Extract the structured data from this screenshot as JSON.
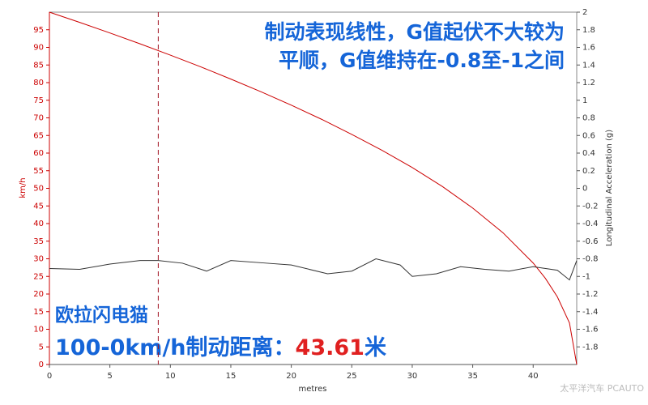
{
  "chart_data": {
    "type": "line",
    "annotations": [
      "制动表现线性，G值起伏不大较为",
      "平顺，G值维持在-0.8至-1之间",
      "欧拉闪电猫",
      "100-0km/h制动距离：",
      "43.61",
      "米"
    ],
    "watermark": "太平洋汽车 PCAUTO",
    "xlabel": "metres",
    "ylabel": "km/h",
    "y2label": "Longitudinal Acceleration (g)",
    "xlim": [
      0,
      43.6
    ],
    "xticks": [
      0,
      5,
      10,
      15,
      20,
      25,
      30,
      35,
      40
    ],
    "ylim": [
      0,
      100
    ],
    "yticks": [
      0,
      5,
      10,
      15,
      20,
      25,
      30,
      35,
      40,
      45,
      50,
      55,
      60,
      65,
      70,
      75,
      80,
      85,
      90,
      95
    ],
    "y2lim": [
      -2,
      2
    ],
    "y2ticks": [
      -1.8,
      -1.6,
      -1.4,
      -1.2,
      -1,
      -0.8,
      -0.6,
      -0.4,
      -0.2,
      0,
      0.2,
      0.4,
      0.6,
      0.8,
      1,
      1.2,
      1.4,
      1.6,
      1.8,
      2
    ],
    "vline_x": 9,
    "series": [
      {
        "name": "km/h",
        "color": "#cc0000",
        "x": [
          0,
          2.5,
          5,
          7.5,
          10,
          12.5,
          15,
          17.5,
          20,
          22.5,
          25,
          27.5,
          30,
          32.5,
          35,
          37.5,
          40,
          41,
          42,
          43,
          43.6
        ],
        "values": [
          100,
          97.1,
          94.1,
          91,
          87.8,
          84.5,
          81,
          77.4,
          73.6,
          69.6,
          65.3,
          60.8,
          55.9,
          50.5,
          44.4,
          37.4,
          28.8,
          24.5,
          19.2,
          11.8,
          0
        ]
      },
      {
        "name": "Longitudinal Acceleration (g)",
        "color": "#333333",
        "axis": "y2",
        "x": [
          0,
          2.5,
          5,
          7.5,
          9,
          11,
          13,
          15,
          18,
          20,
          23,
          25,
          27,
          29,
          30,
          32,
          34,
          36,
          38,
          40,
          42,
          43,
          43.6
        ],
        "values": [
          -0.91,
          -0.92,
          -0.86,
          -0.82,
          -0.82,
          -0.85,
          -0.94,
          -0.82,
          -0.85,
          -0.87,
          -0.97,
          -0.94,
          -0.8,
          -0.87,
          -1,
          -0.97,
          -0.89,
          -0.92,
          -0.94,
          -0.89,
          -0.93,
          -1.04,
          -0.82
        ]
      }
    ]
  }
}
